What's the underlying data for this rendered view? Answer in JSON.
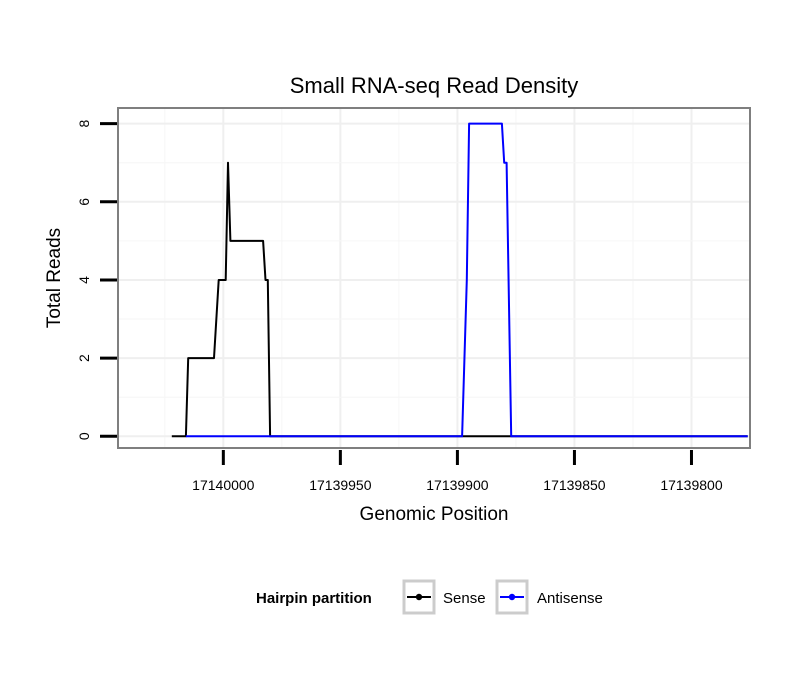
{
  "chart_data": {
    "type": "line",
    "title": "Small RNA-seq Read Density",
    "xlabel": "Genomic Position",
    "ylabel": "Total Reads",
    "x_reversed": true,
    "xlim": [
      17140045,
      17139775
    ],
    "ylim": [
      -0.3,
      8.4
    ],
    "x_ticks": [
      17140000,
      17139950,
      17139900,
      17139850,
      17139800
    ],
    "x_tick_labels": [
      "17140000",
      "17139950",
      "17139900",
      "17139850",
      "17139800"
    ],
    "y_ticks": [
      0,
      2,
      4,
      6,
      8
    ],
    "y_tick_labels": [
      "0",
      "2",
      "4",
      "6",
      "8"
    ],
    "grid": true,
    "legend": {
      "title": "Hairpin partition",
      "placement": "bottom"
    },
    "series": [
      {
        "name": "Sense",
        "color": "#000000",
        "points": [
          [
            17140022,
            0
          ],
          [
            17140016,
            0
          ],
          [
            17140015,
            2
          ],
          [
            17140004,
            2
          ],
          [
            17140002,
            4
          ],
          [
            17139999,
            4
          ],
          [
            17139998,
            7
          ],
          [
            17139997,
            5
          ],
          [
            17139983,
            5
          ],
          [
            17139982,
            4
          ],
          [
            17139981,
            4
          ],
          [
            17139980,
            0
          ],
          [
            17139776,
            0
          ]
        ]
      },
      {
        "name": "Antisense",
        "color": "#0000ff",
        "points": [
          [
            17140016,
            0
          ],
          [
            17139898,
            0
          ],
          [
            17139896,
            4
          ],
          [
            17139895,
            8
          ],
          [
            17139881,
            8
          ],
          [
            17139880,
            7
          ],
          [
            17139879,
            7
          ],
          [
            17139877,
            0
          ],
          [
            17139776,
            0
          ]
        ]
      }
    ]
  }
}
